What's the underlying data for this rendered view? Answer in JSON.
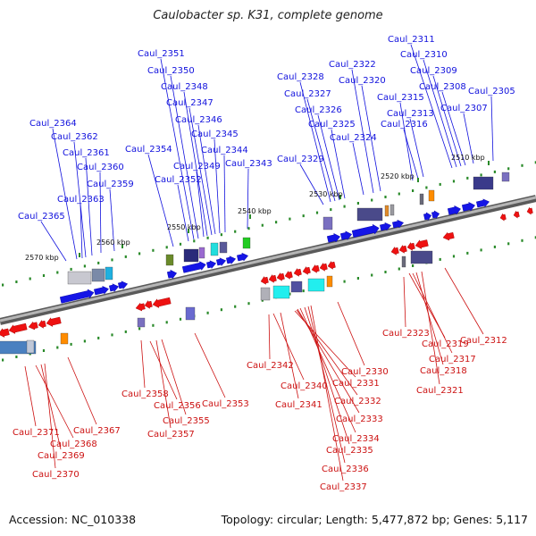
{
  "title": "Caulobacter sp. K31, complete genome",
  "accession_text": "Accession: NC_010338",
  "summary_text": "Topology: circular; Length: 5,477,872 bp; Genes: 5,117",
  "colors": {
    "forward_label": "#1111dd",
    "reverse_label": "#cc1111",
    "forward_arrow": "#1515e6",
    "reverse_arrow": "#ee1111",
    "backbone": "#888888",
    "tick": "#2a8a2a"
  },
  "scale_labels": [
    "2570 kbp",
    "2560 kbp",
    "2550 kbp",
    "2540 kbp",
    "2530 kbp",
    "2520 kbp",
    "2510 kbp"
  ],
  "forward_genes": [
    "Caul_2365",
    "Caul_2364",
    "Caul_2363",
    "Caul_2362",
    "Caul_2361",
    "Caul_2360",
    "Caul_2359",
    "Caul_2354",
    "Caul_2352",
    "Caul_2351",
    "Caul_2350",
    "Caul_2349",
    "Caul_2348",
    "Caul_2347",
    "Caul_2346",
    "Caul_2345",
    "Caul_2344",
    "Caul_2343",
    "Caul_2329",
    "Caul_2328",
    "Caul_2327",
    "Caul_2326",
    "Caul_2325",
    "Caul_2324",
    "Caul_2322",
    "Caul_2320",
    "Caul_2316",
    "Caul_2315",
    "Caul_2313",
    "Caul_2311",
    "Caul_2310",
    "Caul_2309",
    "Caul_2308",
    "Caul_2307",
    "Caul_2305"
  ],
  "reverse_genes": [
    "Caul_2371",
    "Caul_2370",
    "Caul_2369",
    "Caul_2368",
    "Caul_2367",
    "Caul_2358",
    "Caul_2357",
    "Caul_2356",
    "Caul_2355",
    "Caul_2353",
    "Caul_2342",
    "Caul_2341",
    "Caul_2340",
    "Caul_2337",
    "Caul_2336",
    "Caul_2335",
    "Caul_2334",
    "Caul_2333",
    "Caul_2332",
    "Caul_2331",
    "Caul_2330",
    "Caul_2323",
    "Caul_2321",
    "Caul_2319",
    "Caul_2318",
    "Caul_2317",
    "Caul_2312"
  ]
}
